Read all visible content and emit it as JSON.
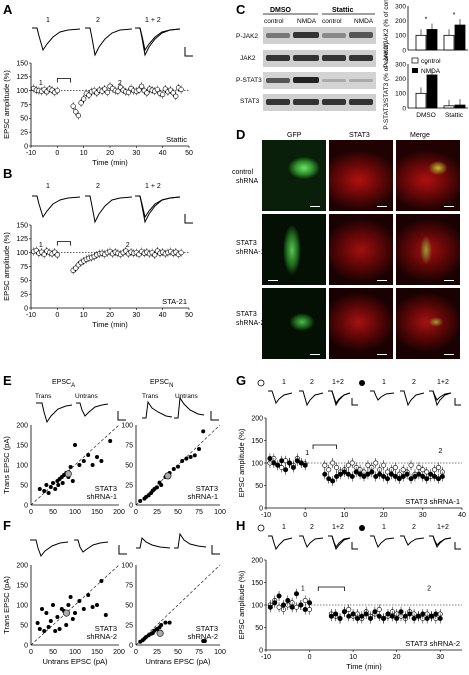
{
  "panels": {
    "A": {
      "letter": "A",
      "trace_labels": [
        "1",
        "2",
        "1 + 2"
      ],
      "ylabel": "EPSC amplitude (%)",
      "xlabel": "Time (min)",
      "drug": "Stattic",
      "yticks": [
        "0",
        "25",
        "50",
        "75",
        "100",
        "125",
        "150"
      ],
      "xticks": [
        "-10",
        "0",
        "10",
        "20",
        "30",
        "40",
        "50"
      ],
      "period_labels": [
        "1",
        "2"
      ]
    },
    "B": {
      "letter": "B",
      "trace_labels": [
        "1",
        "2",
        "1 + 2"
      ],
      "ylabel": "EPSC amplitude (%)",
      "xlabel": "Time (min)",
      "drug": "STA-21",
      "yticks": [
        "0",
        "25",
        "50",
        "75",
        "100",
        "125",
        "150"
      ],
      "xticks": [
        "-10",
        "0",
        "10",
        "20",
        "30",
        "40",
        "50"
      ],
      "period_labels": [
        "1",
        "2"
      ]
    },
    "C": {
      "letter": "C",
      "groups": [
        "DMSO",
        "Stattic"
      ],
      "conditions": [
        "control",
        "NMDA",
        "control",
        "NMDA"
      ],
      "blots": [
        "P-JAK2",
        "JAK2",
        "P-STAT3",
        "STAT3"
      ],
      "bar1_ylabel": "P-JAK2/JAK2 (% of control)",
      "bar2_ylabel": "P-STAT3/STAT3 (% of control)",
      "yticks": [
        "0",
        "100",
        "200",
        "300"
      ],
      "xcats": [
        "DMSO",
        "Stattic"
      ],
      "legend": [
        "control",
        "NMDA"
      ],
      "sig": "*"
    },
    "D": {
      "letter": "D",
      "columns": [
        "GFP",
        "STAT3",
        "Merge"
      ],
      "rows": [
        "control shRNA",
        "STAT3 shRNA-1",
        "STAT3 shRNA-2"
      ]
    },
    "E": {
      "letter": "E",
      "left_title": "EPSC",
      "left_sub": "A",
      "right_title": "EPSC",
      "right_sub": "N",
      "trace_labels": [
        "Trans",
        "Untrans"
      ],
      "ylabel": "Trans EPSC (pA)",
      "ticks": [
        "0",
        "50",
        "100",
        "150",
        "200"
      ],
      "label": "STAT3 shRNA-1"
    },
    "F": {
      "letter": "F",
      "ylabel": "Trans EPSC (pA)",
      "xlabel": "Untrans EPSC (pA)",
      "left_ticks": [
        "0",
        "50",
        "100",
        "150",
        "200"
      ],
      "right_ticks": [
        "0",
        "25",
        "50",
        "75",
        "100"
      ],
      "label": "STAT3 shRNA-2"
    },
    "G": {
      "letter": "G",
      "trace_labels": [
        "1",
        "2",
        "1+2",
        "1",
        "2",
        "1+2"
      ],
      "ylabel": "EPSC amplitude (%)",
      "yticks": [
        "0",
        "50",
        "100",
        "150",
        "200"
      ],
      "xticks": [
        "-10",
        "0",
        "10",
        "20",
        "30",
        "40"
      ],
      "period_labels": [
        "1",
        "2"
      ],
      "label": "STAT3 shRNA-1"
    },
    "H": {
      "letter": "H",
      "trace_labels": [
        "1",
        "2",
        "1+2",
        "1",
        "2",
        "1+2"
      ],
      "ylabel": "EPSC amplitude (%)",
      "xlabel": "Time (min)",
      "yticks": [
        "0",
        "50",
        "100",
        "150",
        "200"
      ],
      "xticks": [
        "-10",
        "0",
        "10",
        "20",
        "30"
      ],
      "period_labels": [
        "1",
        "2"
      ],
      "label": "STAT3 shRNA-2"
    }
  },
  "chart_data": [
    {
      "type": "scatter",
      "panel": "A",
      "ylim": [
        0,
        150
      ],
      "xlim": [
        -10,
        50
      ],
      "x": [
        -9,
        -8,
        -7,
        -6,
        -5,
        -4,
        -3,
        -2,
        -1,
        0,
        6,
        7,
        8,
        9,
        10,
        11,
        12,
        13,
        14,
        15,
        16,
        17,
        18,
        19,
        20,
        21,
        22,
        23,
        24,
        25,
        26,
        27,
        28,
        29,
        30,
        31,
        32,
        33,
        34,
        35,
        36,
        37,
        38,
        39,
        40,
        41,
        42,
        43,
        44,
        45,
        46,
        47
      ],
      "y": [
        104,
        101,
        100,
        99,
        102,
        98,
        103,
        101,
        97,
        100,
        72,
        62,
        55,
        78,
        85,
        95,
        92,
        98,
        100,
        96,
        101,
        99,
        103,
        97,
        108,
        104,
        100,
        99,
        106,
        101,
        98,
        97,
        104,
        100,
        99,
        101,
        108,
        100,
        96,
        103,
        101,
        99,
        102,
        95,
        93,
        103,
        98,
        101,
        96,
        90,
        105,
        102
      ]
    },
    {
      "type": "scatter",
      "panel": "B",
      "ylim": [
        0,
        150
      ],
      "xlim": [
        -10,
        50
      ],
      "x": [
        -9,
        -8,
        -7,
        -6,
        -5,
        -4,
        -3,
        -2,
        -1,
        0,
        6,
        7,
        8,
        9,
        10,
        11,
        12,
        13,
        14,
        15,
        16,
        17,
        18,
        19,
        20,
        21,
        22,
        23,
        24,
        25,
        26,
        27,
        28,
        29,
        30,
        31,
        32,
        33,
        34,
        35,
        36,
        37,
        38,
        39,
        40,
        41,
        42,
        43,
        44,
        45,
        46,
        47
      ],
      "y": [
        102,
        104,
        99,
        101,
        97,
        103,
        100,
        98,
        101,
        96,
        68,
        72,
        78,
        82,
        85,
        88,
        90,
        91,
        93,
        96,
        98,
        99,
        97,
        100,
        102,
        98,
        101,
        99,
        97,
        100,
        103,
        98,
        101,
        99,
        100,
        97,
        102,
        99,
        101,
        98,
        100,
        96,
        103,
        99,
        101,
        98,
        100,
        102,
        99,
        101,
        97,
        100
      ]
    },
    {
      "type": "bar",
      "panel": "C-top",
      "categories": [
        "DMSO",
        "Stattic"
      ],
      "ylim": [
        0,
        300
      ],
      "series": [
        {
          "name": "control",
          "values": [
            100,
            100
          ]
        },
        {
          "name": "NMDA",
          "values": [
            140,
            170
          ]
        }
      ]
    },
    {
      "type": "bar",
      "panel": "C-bottom",
      "categories": [
        "DMSO",
        "Stattic"
      ],
      "ylim": [
        0,
        300
      ],
      "series": [
        {
          "name": "control",
          "values": [
            100,
            15
          ]
        },
        {
          "name": "NMDA",
          "values": [
            225,
            20
          ]
        }
      ]
    },
    {
      "type": "scatter",
      "panel": "E-left",
      "xlim": [
        0,
        200
      ],
      "ylim": [
        0,
        200
      ],
      "x": [
        20,
        30,
        35,
        40,
        45,
        50,
        55,
        60,
        62,
        65,
        70,
        72,
        75,
        80,
        85,
        90,
        95,
        100,
        110,
        120,
        130,
        140,
        150,
        160,
        180
      ],
      "y": [
        40,
        35,
        50,
        30,
        45,
        55,
        40,
        60,
        50,
        65,
        70,
        55,
        75,
        80,
        70,
        95,
        60,
        150,
        100,
        110,
        125,
        100,
        120,
        110,
        160
      ]
    },
    {
      "type": "scatter",
      "panel": "E-right",
      "xlim": [
        0,
        100
      ],
      "ylim": [
        0,
        100
      ],
      "x": [
        5,
        10,
        12,
        15,
        18,
        20,
        22,
        25,
        28,
        30,
        35,
        40,
        45,
        50,
        55,
        60,
        65,
        70,
        75,
        80
      ],
      "y": [
        5,
        8,
        10,
        12,
        15,
        18,
        20,
        22,
        28,
        25,
        35,
        40,
        45,
        48,
        55,
        58,
        60,
        62,
        70,
        92
      ]
    },
    {
      "type": "scatter",
      "panel": "F-left",
      "xlim": [
        0,
        200
      ],
      "ylim": [
        0,
        200
      ],
      "x": [
        15,
        20,
        25,
        30,
        35,
        40,
        45,
        50,
        55,
        60,
        65,
        70,
        75,
        80,
        85,
        90,
        95,
        100,
        110,
        120,
        130,
        140,
        150,
        160,
        170
      ],
      "y": [
        55,
        40,
        90,
        35,
        80,
        45,
        60,
        100,
        35,
        70,
        40,
        90,
        85,
        50,
        100,
        120,
        65,
        80,
        110,
        90,
        125,
        95,
        100,
        160,
        75
      ]
    },
    {
      "type": "scatter",
      "panel": "F-right",
      "xlim": [
        0,
        100
      ],
      "ylim": [
        0,
        100
      ],
      "x": [
        5,
        8,
        10,
        12,
        15,
        18,
        20,
        22,
        25,
        28,
        30,
        35,
        40,
        80,
        82
      ],
      "y": [
        4,
        6,
        8,
        10,
        12,
        14,
        15,
        18,
        20,
        22,
        25,
        28,
        28,
        5,
        5
      ]
    },
    {
      "type": "scatter",
      "panel": "G",
      "xlim": [
        -10,
        40
      ],
      "ylim": [
        0,
        200
      ],
      "series": [
        {
          "name": "open",
          "x": [
            -9,
            -8,
            -7,
            -6,
            -5,
            -4,
            -3,
            -2,
            -1,
            0,
            5,
            6,
            7,
            8,
            9,
            10,
            11,
            12,
            13,
            14,
            15,
            16,
            17,
            18,
            19,
            20,
            21,
            22,
            23,
            24,
            25,
            26,
            27,
            28,
            29,
            30,
            31,
            32,
            33,
            34,
            35
          ],
          "y": [
            100,
            110,
            95,
            90,
            105,
            100,
            95,
            110,
            100,
            98,
            95,
            85,
            100,
            90,
            80,
            85,
            95,
            100,
            90,
            85,
            80,
            95,
            90,
            100,
            85,
            95,
            80,
            85,
            90,
            75,
            85,
            80,
            95,
            75,
            90,
            85,
            80,
            70,
            85,
            90,
            80
          ]
        },
        {
          "name": "filled",
          "x": [
            -9,
            -8,
            -7,
            -6,
            -5,
            -4,
            -3,
            -2,
            -1,
            0,
            5,
            6,
            7,
            8,
            9,
            10,
            11,
            12,
            13,
            14,
            15,
            16,
            17,
            18,
            19,
            20,
            21,
            22,
            23,
            24,
            25,
            26,
            27,
            28,
            29,
            30,
            31,
            32,
            33,
            34,
            35
          ],
          "y": [
            110,
            100,
            95,
            105,
            85,
            100,
            90,
            105,
            100,
            95,
            75,
            65,
            60,
            70,
            75,
            80,
            75,
            70,
            80,
            75,
            70,
            75,
            80,
            70,
            75,
            70,
            65,
            75,
            70,
            65,
            70,
            75,
            65,
            70,
            75,
            70,
            65,
            75,
            70,
            65,
            70
          ]
        }
      ]
    },
    {
      "type": "scatter",
      "panel": "H",
      "xlim": [
        -10,
        35
      ],
      "ylim": [
        0,
        200
      ],
      "series": [
        {
          "name": "open",
          "x": [
            -9,
            -8,
            -7,
            -6,
            -5,
            -4,
            -3,
            -2,
            -1,
            0,
            5,
            6,
            7,
            8,
            9,
            10,
            11,
            12,
            13,
            14,
            15,
            16,
            17,
            18,
            19,
            20,
            21,
            22,
            23,
            24,
            25,
            26,
            27,
            28,
            29,
            30
          ],
          "y": [
            100,
            110,
            95,
            90,
            100,
            105,
            95,
            100,
            110,
            90,
            80,
            75,
            70,
            85,
            90,
            75,
            80,
            70,
            85,
            75,
            80,
            90,
            70,
            75,
            85,
            80,
            75,
            70,
            85,
            80,
            75,
            70,
            80,
            75,
            70,
            80
          ]
        },
        {
          "name": "filled",
          "x": [
            -9,
            -8,
            -7,
            -6,
            -5,
            -4,
            -3,
            -2,
            -1,
            0,
            5,
            6,
            7,
            8,
            9,
            10,
            11,
            12,
            13,
            14,
            15,
            16,
            17,
            18,
            19,
            20,
            21,
            22,
            23,
            24,
            25,
            26,
            27,
            28,
            29,
            30
          ],
          "y": [
            95,
            105,
            120,
            100,
            110,
            95,
            125,
            100,
            90,
            105,
            75,
            80,
            70,
            85,
            75,
            80,
            70,
            75,
            80,
            70,
            85,
            75,
            70,
            80,
            75,
            70,
            85,
            75,
            80,
            70,
            75,
            80,
            70,
            75,
            80,
            70
          ]
        }
      ]
    }
  ]
}
